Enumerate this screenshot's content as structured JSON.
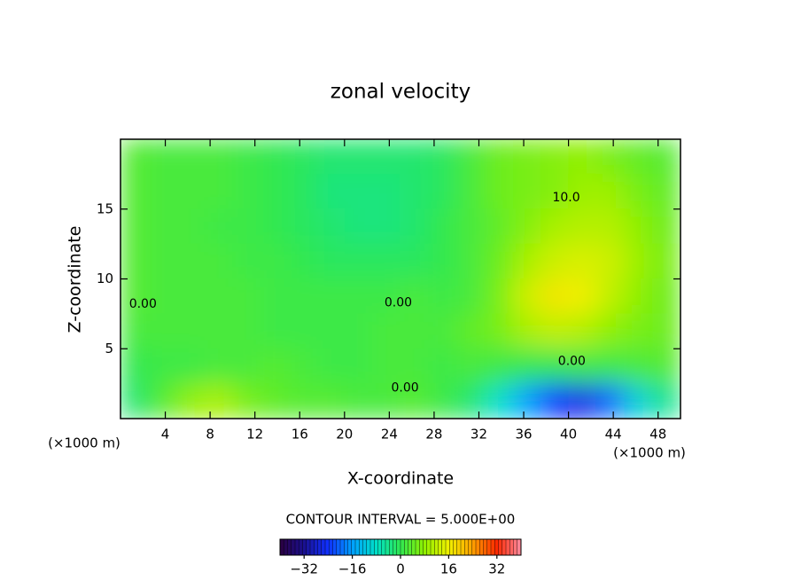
{
  "chart_data": {
    "type": "contour",
    "title": "zonal velocity",
    "xlabel": "X-coordinate",
    "ylabel": "Z-coordinate",
    "x_unit_label": "(×1000 m)",
    "y_unit_label": "(×1000 m)",
    "footer": "CONTOUR INTERVAL = 5.000E+00",
    "xlim": [
      0,
      50
    ],
    "ylim": [
      0,
      20
    ],
    "xticks": [
      4,
      8,
      12,
      16,
      20,
      24,
      28,
      32,
      36,
      40,
      44,
      48
    ],
    "yticks": [
      5,
      10,
      15
    ],
    "x": [
      1.25,
      3.75,
      6.25,
      8.75,
      11.25,
      13.75,
      16.25,
      18.75,
      21.25,
      23.75,
      26.25,
      28.75,
      31.25,
      33.75,
      36.25,
      38.75,
      41.25,
      43.75,
      46.25,
      48.75
    ],
    "y": [
      18.75,
      16.25,
      13.75,
      11.25,
      8.75,
      6.25,
      3.75,
      1.25
    ],
    "z": [
      [
        3,
        2,
        2,
        2,
        1,
        0,
        -1,
        -2,
        -2,
        -2,
        -2,
        -1,
        2,
        5,
        6,
        7,
        8,
        6,
        4,
        3
      ],
      [
        3,
        2,
        2,
        2,
        1,
        0,
        -1,
        -3,
        -3,
        -3,
        -2,
        -1,
        2,
        5,
        6,
        7,
        9,
        9,
        6,
        4
      ],
      [
        3,
        2,
        2,
        1,
        1,
        0,
        -1,
        -2,
        -3,
        -3,
        -2,
        0,
        2,
        4,
        7,
        10,
        11,
        11,
        8,
        5
      ],
      [
        3,
        2,
        2,
        2,
        1,
        1,
        0,
        -1,
        -1,
        -1,
        -1,
        0,
        2,
        5,
        10,
        13,
        14,
        13,
        9,
        6
      ],
      [
        3,
        2,
        2,
        2,
        2,
        1,
        1,
        1,
        1,
        1,
        2,
        1,
        2,
        6,
        13,
        17,
        16,
        12,
        8,
        5
      ],
      [
        2,
        2,
        2,
        2,
        2,
        1,
        1,
        1,
        1,
        2,
        2,
        2,
        4,
        6,
        10,
        12,
        11,
        8,
        6,
        5
      ],
      [
        0,
        1,
        1,
        2,
        2,
        3,
        2,
        1,
        1,
        2,
        2,
        1,
        2,
        1,
        0,
        0,
        1,
        1,
        2,
        3
      ],
      [
        -2,
        3,
        8,
        10,
        6,
        4,
        3,
        3,
        2,
        2,
        3,
        1,
        -2,
        -8,
        -16,
        -24,
        -26,
        -20,
        -10,
        -4
      ]
    ],
    "clim": [
      -40,
      40
    ],
    "colormap": [
      "#2a0040",
      "#1a1090",
      "#1030ff",
      "#00a0ff",
      "#00e0c8",
      "#30e850",
      "#90f000",
      "#f0f000",
      "#ffa000",
      "#ff2800",
      "#ff8ca0"
    ],
    "cticks": [
      {
        "value": -32,
        "label": "−32"
      },
      {
        "value": -16,
        "label": "−16"
      },
      0,
      16,
      32
    ],
    "annotations": [
      {
        "text": "10.0",
        "x": 39.8,
        "y": 15.8
      },
      {
        "text": "0.00",
        "x": 24.8,
        "y": 8.3
      },
      {
        "text": "0.00",
        "x": 40.3,
        "y": 4.1
      },
      {
        "text": "0.00",
        "x": 25.4,
        "y": 2.2
      },
      {
        "text": "0.00",
        "x": 2.0,
        "y": 8.2
      }
    ]
  }
}
